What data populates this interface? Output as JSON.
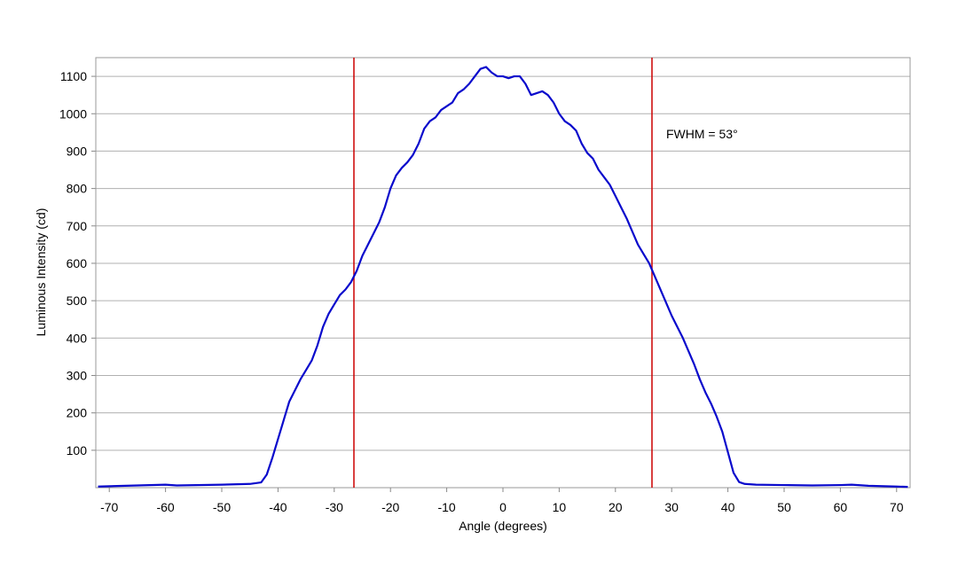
{
  "chart_data": {
    "type": "line",
    "xlabel": "Angle (degrees)",
    "ylabel": "Luminous Intensity (cd)",
    "annotation": "FWHM = 53°",
    "x": [
      -72,
      -65,
      -60,
      -58,
      -50,
      -45,
      -43,
      -42,
      -41,
      -40,
      -39,
      -38,
      -37,
      -36,
      -35,
      -34,
      -33,
      -32,
      -31,
      -30,
      -29,
      -28,
      -27,
      -26,
      -25,
      -24,
      -23,
      -22,
      -21,
      -20,
      -19,
      -18,
      -17,
      -16,
      -15,
      -14,
      -13,
      -12,
      -11,
      -10,
      -9,
      -8,
      -7,
      -6,
      -5,
      -4,
      -3,
      -2,
      -1,
      0,
      1,
      2,
      3,
      4,
      5,
      6,
      7,
      8,
      9,
      10,
      11,
      12,
      13,
      14,
      15,
      16,
      17,
      18,
      19,
      20,
      21,
      22,
      23,
      24,
      25,
      26,
      27,
      28,
      29,
      30,
      31,
      32,
      33,
      34,
      35,
      36,
      37,
      38,
      39,
      40,
      41,
      42,
      43,
      45,
      50,
      55,
      60,
      62,
      65,
      70,
      72
    ],
    "series": [
      {
        "name": "Luminous Intensity",
        "color": "#0a0acc",
        "values": [
          3,
          6,
          8,
          6,
          8,
          10,
          14,
          35,
          80,
          130,
          180,
          230,
          260,
          290,
          315,
          340,
          380,
          430,
          465,
          490,
          515,
          530,
          550,
          580,
          620,
          650,
          680,
          710,
          750,
          800,
          835,
          855,
          870,
          890,
          920,
          960,
          980,
          990,
          1010,
          1020,
          1030,
          1055,
          1065,
          1080,
          1100,
          1120,
          1125,
          1110,
          1100,
          1100,
          1095,
          1100,
          1100,
          1080,
          1050,
          1055,
          1060,
          1050,
          1030,
          1000,
          980,
          970,
          955,
          920,
          895,
          880,
          850,
          830,
          810,
          780,
          750,
          720,
          685,
          650,
          625,
          600,
          565,
          530,
          495,
          460,
          430,
          400,
          365,
          330,
          290,
          255,
          225,
          190,
          150,
          95,
          40,
          15,
          10,
          8,
          7,
          6,
          7,
          8,
          5,
          3,
          2
        ]
      }
    ],
    "vlines": [
      -26.5,
      26.5
    ],
    "vline_color": "#cc0000",
    "xlim": [
      -72.4,
      72.4
    ],
    "xticks": [
      -70,
      -60,
      -50,
      -40,
      -30,
      -20,
      -10,
      0,
      10,
      20,
      30,
      40,
      50,
      60,
      70
    ],
    "ylim": [
      0,
      1150
    ],
    "yticks": [
      100,
      200,
      300,
      400,
      500,
      600,
      700,
      800,
      900,
      1000,
      1100
    ],
    "grid": true
  }
}
